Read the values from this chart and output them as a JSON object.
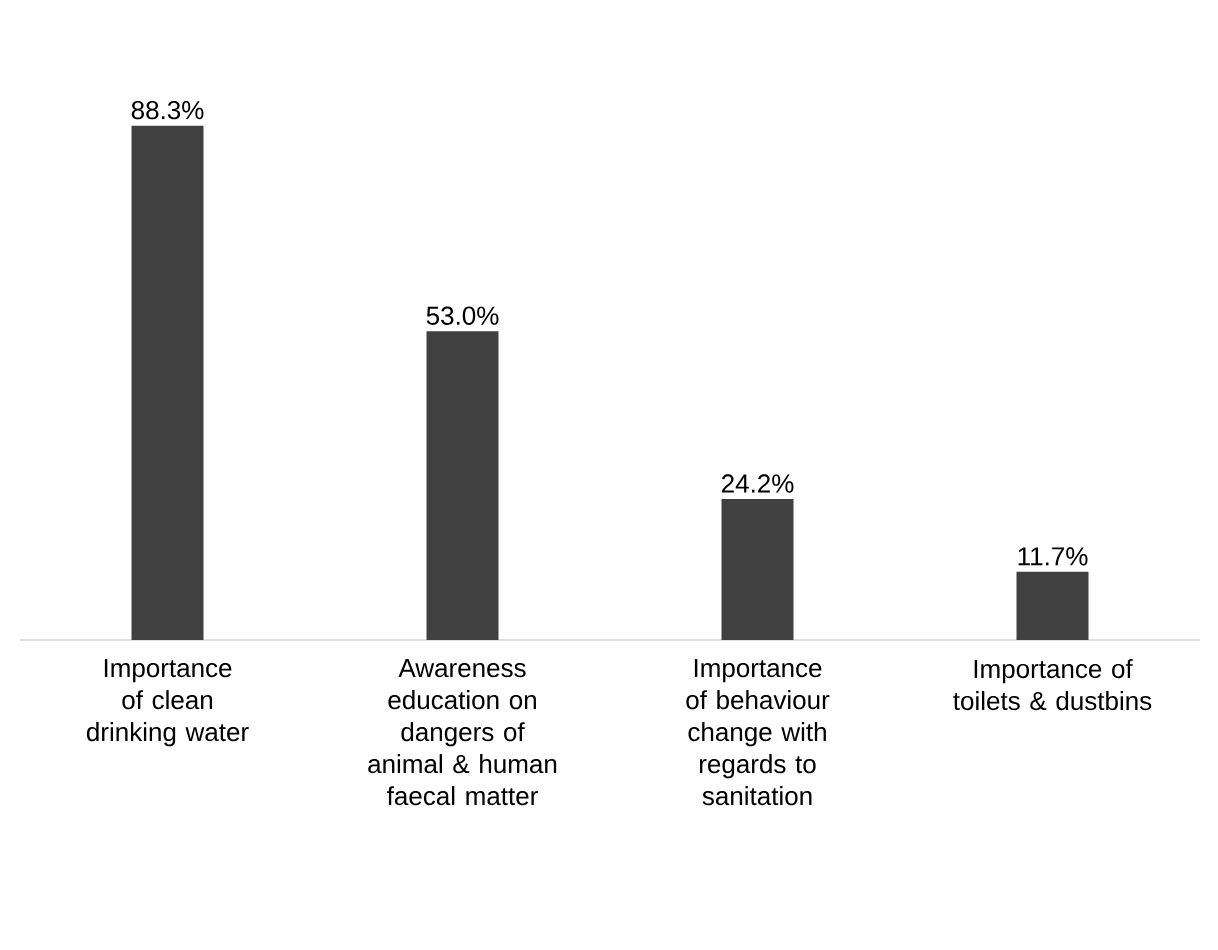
{
  "chart_data": {
    "type": "bar",
    "categories": [
      "Importance of clean drinking water",
      "Awareness education on dangers of animal & human faecal matter",
      "Importance of behaviour change with regards to sanitation",
      "Importance of toilets & dustbins"
    ],
    "values": [
      88.3,
      53.0,
      24.2,
      11.7
    ],
    "value_labels": [
      "88.3%",
      "53.0%",
      "24.2%",
      "11.7%"
    ],
    "color": "#404040"
  }
}
